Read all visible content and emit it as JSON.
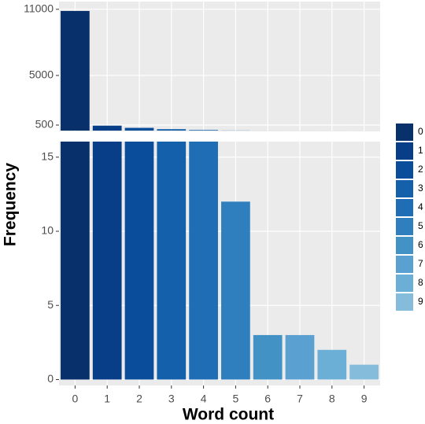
{
  "chart_data": {
    "type": "bar",
    "x_label": "Word count",
    "y_label": "Frequency",
    "categories": [
      "0",
      "1",
      "2",
      "3",
      "4",
      "5",
      "6",
      "7",
      "8",
      "9"
    ],
    "values": [
      10850,
      450,
      250,
      130,
      60,
      12,
      3,
      3,
      2,
      1
    ],
    "colors": [
      "#08306b",
      "#083d87",
      "#0a4d9b",
      "#1460aa",
      "#1f6db5",
      "#2f7fbf",
      "#4292c6",
      "#5aa0d0",
      "#6baed6",
      "#85bcdc"
    ],
    "panels": [
      {
        "ylim": [
          -70,
          11700
        ],
        "yticks": [
          500,
          5000,
          11000
        ]
      },
      {
        "ylim": [
          -0.4,
          16.05
        ],
        "yticks": [
          0,
          5,
          10,
          15
        ]
      }
    ],
    "grid": true
  }
}
